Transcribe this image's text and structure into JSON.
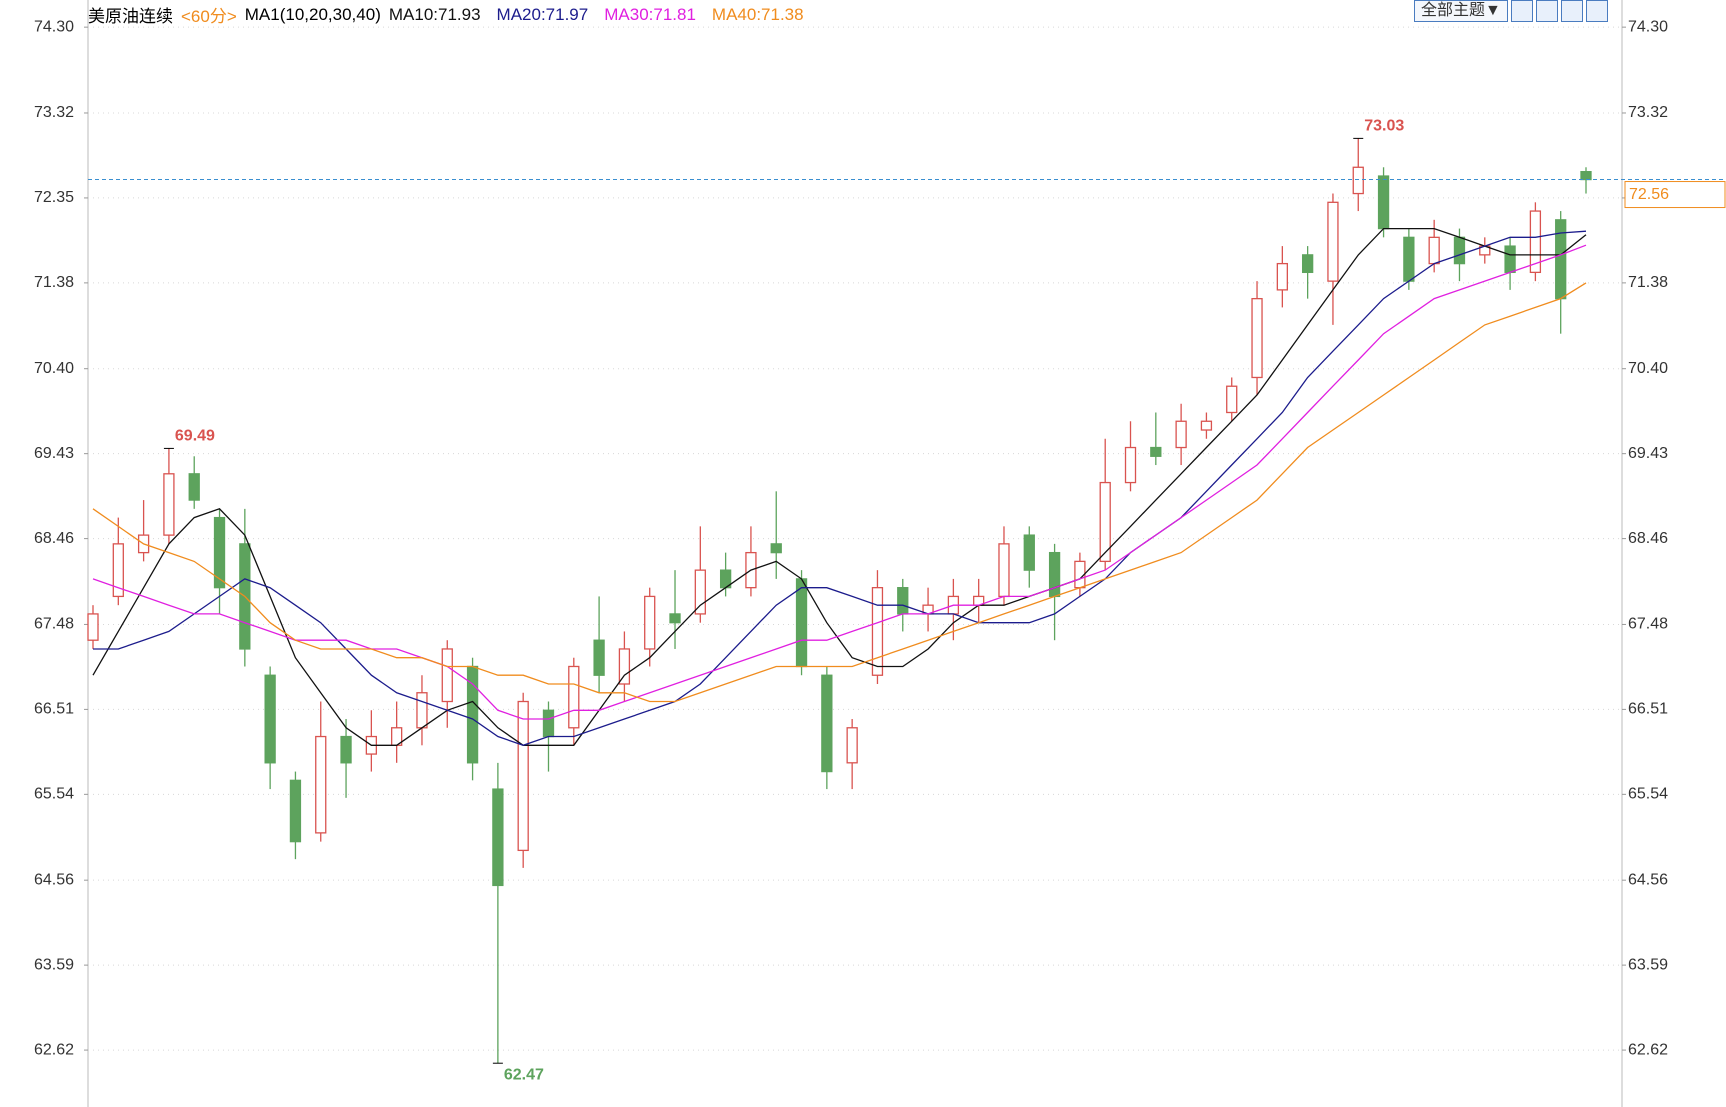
{
  "chart_data": {
    "type": "candlestick",
    "title": "美原油连续",
    "period": "<60分>",
    "indicator": "MA1(10,20,30,40)",
    "theme_button": "全部主题▼",
    "ylim": [
      61.97,
      74.61
    ],
    "yticks": [
      {
        "value": 74.3,
        "label": "74.30"
      },
      73.32,
      72.35,
      71.38,
      {
        "value": 70.4,
        "label": "70.40"
      },
      69.43,
      68.46,
      67.48,
      66.51,
      65.54,
      64.56,
      63.59,
      62.62
    ],
    "up_color": "#d9534f",
    "down_color": "#5da35d",
    "last_price_color": "#f08c1e",
    "candles": [
      [
        67.3,
        67.7,
        67.2,
        67.6
      ],
      [
        67.8,
        68.7,
        67.7,
        68.4
      ],
      [
        68.3,
        68.9,
        68.2,
        68.5
      ],
      [
        68.5,
        69.49,
        68.4,
        69.2
      ],
      [
        69.2,
        69.4,
        68.8,
        68.9
      ],
      [
        68.7,
        68.8,
        67.6,
        67.9
      ],
      [
        68.4,
        68.8,
        67.0,
        67.2
      ],
      [
        66.9,
        67.0,
        65.6,
        65.9
      ],
      [
        65.7,
        65.8,
        64.8,
        65.0
      ],
      [
        65.1,
        66.6,
        65.0,
        66.2
      ],
      [
        66.2,
        66.4,
        65.5,
        65.9
      ],
      [
        66.0,
        66.5,
        65.8,
        66.2
      ],
      [
        66.1,
        66.6,
        65.9,
        66.3
      ],
      [
        66.3,
        66.9,
        66.1,
        66.7
      ],
      [
        66.6,
        67.3,
        66.3,
        67.2
      ],
      [
        67.0,
        67.1,
        65.7,
        65.9
      ],
      [
        65.6,
        65.9,
        62.47,
        64.5
      ],
      [
        64.9,
        66.7,
        64.7,
        66.6
      ],
      [
        66.5,
        66.6,
        65.8,
        66.2
      ],
      [
        66.3,
        67.1,
        66.1,
        67.0
      ],
      [
        67.3,
        67.8,
        66.7,
        66.9
      ],
      [
        66.8,
        67.4,
        66.6,
        67.2
      ],
      [
        67.2,
        67.9,
        67.0,
        67.8
      ],
      [
        67.6,
        68.1,
        67.2,
        67.5
      ],
      [
        67.6,
        68.6,
        67.5,
        68.1
      ],
      [
        68.1,
        68.3,
        67.8,
        67.9
      ],
      [
        67.9,
        68.6,
        67.8,
        68.3
      ],
      [
        68.4,
        69.0,
        68.0,
        68.3
      ],
      [
        68.0,
        68.1,
        66.9,
        67.0
      ],
      [
        66.9,
        67.0,
        65.6,
        65.8
      ],
      [
        65.9,
        66.4,
        65.6,
        66.3
      ],
      [
        66.9,
        68.1,
        66.8,
        67.9
      ],
      [
        67.9,
        68.0,
        67.4,
        67.6
      ],
      [
        67.6,
        67.9,
        67.4,
        67.7
      ],
      [
        67.6,
        68.0,
        67.3,
        67.8
      ],
      [
        67.7,
        68.0,
        67.5,
        67.8
      ],
      [
        67.8,
        68.6,
        67.7,
        68.4
      ],
      [
        68.5,
        68.6,
        67.9,
        68.1
      ],
      [
        68.3,
        68.4,
        67.3,
        67.8
      ],
      [
        67.9,
        68.3,
        67.8,
        68.2
      ],
      [
        68.2,
        69.6,
        68.1,
        69.1
      ],
      [
        69.1,
        69.8,
        69.0,
        69.5
      ],
      [
        69.5,
        69.9,
        69.3,
        69.4
      ],
      [
        69.5,
        70.0,
        69.3,
        69.8
      ],
      [
        69.7,
        69.9,
        69.6,
        69.8
      ],
      [
        69.9,
        70.3,
        69.8,
        70.2
      ],
      [
        70.3,
        71.4,
        70.1,
        71.2
      ],
      [
        71.3,
        71.8,
        71.1,
        71.6
      ],
      [
        71.7,
        71.8,
        71.2,
        71.5
      ],
      [
        71.4,
        72.4,
        70.9,
        72.3
      ],
      [
        72.4,
        73.03,
        72.2,
        72.7
      ],
      [
        72.6,
        72.7,
        71.9,
        72.0
      ],
      [
        71.9,
        72.0,
        71.3,
        71.4
      ],
      [
        71.6,
        72.1,
        71.5,
        71.9
      ],
      [
        71.9,
        72.0,
        71.4,
        71.6
      ],
      [
        71.7,
        71.9,
        71.6,
        71.8
      ],
      [
        71.8,
        71.9,
        71.3,
        71.5
      ],
      [
        71.5,
        72.3,
        71.4,
        72.2
      ],
      [
        72.1,
        72.2,
        70.8,
        71.2
      ],
      [
        72.65,
        72.7,
        72.4,
        72.56
      ]
    ],
    "series": [
      {
        "name": "MA10:71.93",
        "color": "#111111",
        "values": [
          66.9,
          67.4,
          67.9,
          68.4,
          68.7,
          68.8,
          68.5,
          67.8,
          67.1,
          66.7,
          66.3,
          66.1,
          66.1,
          66.3,
          66.5,
          66.6,
          66.3,
          66.1,
          66.1,
          66.1,
          66.5,
          66.9,
          67.1,
          67.4,
          67.7,
          67.9,
          68.1,
          68.2,
          68.0,
          67.5,
          67.1,
          67.0,
          67.0,
          67.2,
          67.5,
          67.7,
          67.7,
          67.8,
          67.9,
          68.0,
          68.3,
          68.6,
          68.9,
          69.2,
          69.5,
          69.8,
          70.1,
          70.5,
          70.9,
          71.3,
          71.7,
          72.0,
          72.0,
          72.0,
          71.9,
          71.8,
          71.7,
          71.7,
          71.7,
          71.93
        ]
      },
      {
        "name": "MA20:71.97",
        "color": "#1c1c8c",
        "values": [
          67.2,
          67.2,
          67.3,
          67.4,
          67.6,
          67.8,
          68.0,
          67.9,
          67.7,
          67.5,
          67.2,
          66.9,
          66.7,
          66.6,
          66.5,
          66.4,
          66.2,
          66.1,
          66.2,
          66.2,
          66.3,
          66.4,
          66.5,
          66.6,
          66.8,
          67.1,
          67.4,
          67.7,
          67.9,
          67.9,
          67.8,
          67.7,
          67.7,
          67.6,
          67.6,
          67.5,
          67.5,
          67.5,
          67.6,
          67.8,
          68.0,
          68.3,
          68.5,
          68.7,
          69.0,
          69.3,
          69.6,
          69.9,
          70.3,
          70.6,
          70.9,
          71.2,
          71.4,
          71.6,
          71.7,
          71.8,
          71.9,
          71.9,
          71.95,
          71.97
        ]
      },
      {
        "name": "MA30:71.81",
        "color": "#e020e0",
        "values": [
          68.0,
          67.9,
          67.8,
          67.7,
          67.6,
          67.6,
          67.5,
          67.4,
          67.3,
          67.3,
          67.3,
          67.2,
          67.2,
          67.1,
          67.0,
          66.8,
          66.5,
          66.4,
          66.4,
          66.5,
          66.5,
          66.6,
          66.7,
          66.8,
          66.9,
          67.0,
          67.1,
          67.2,
          67.3,
          67.3,
          67.4,
          67.5,
          67.6,
          67.6,
          67.7,
          67.7,
          67.8,
          67.8,
          67.9,
          68.0,
          68.1,
          68.3,
          68.5,
          68.7,
          68.9,
          69.1,
          69.3,
          69.6,
          69.9,
          70.2,
          70.5,
          70.8,
          71.0,
          71.2,
          71.3,
          71.4,
          71.5,
          71.6,
          71.7,
          71.81
        ]
      },
      {
        "name": "MA40:71.38",
        "color": "#f08c1e",
        "values": [
          68.8,
          68.6,
          68.4,
          68.3,
          68.2,
          68.0,
          67.8,
          67.5,
          67.3,
          67.2,
          67.2,
          67.2,
          67.1,
          67.1,
          67.0,
          67.0,
          66.9,
          66.9,
          66.8,
          66.8,
          66.7,
          66.7,
          66.6,
          66.6,
          66.7,
          66.8,
          66.9,
          67.0,
          67.0,
          67.0,
          67.0,
          67.1,
          67.2,
          67.3,
          67.4,
          67.5,
          67.6,
          67.7,
          67.8,
          67.9,
          68.0,
          68.1,
          68.2,
          68.3,
          68.5,
          68.7,
          68.9,
          69.2,
          69.5,
          69.7,
          69.9,
          70.1,
          70.3,
          70.5,
          70.7,
          70.9,
          71.0,
          71.1,
          71.2,
          71.38
        ]
      }
    ]
  }
}
